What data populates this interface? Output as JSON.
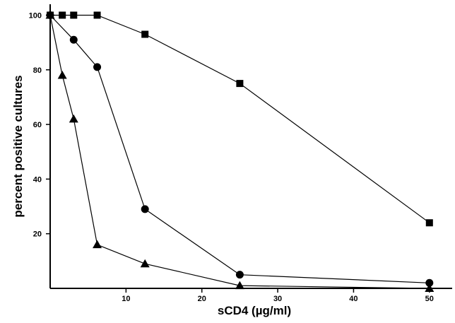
{
  "chart_data": {
    "type": "line",
    "title": "",
    "xlabel": "sCD4 (µg/ml)",
    "ylabel": "percent positive cultures",
    "xlim": [
      0,
      53
    ],
    "ylim": [
      0,
      104
    ],
    "x_ticks": [
      10,
      20,
      30,
      40,
      50
    ],
    "y_ticks": [
      20,
      40,
      60,
      80,
      100
    ],
    "grid": false,
    "legend": "none",
    "series": [
      {
        "marker": "square",
        "x": [
          0,
          1.6,
          3.1,
          6.2,
          12.5,
          25,
          50
        ],
        "y": [
          100,
          100,
          100,
          100,
          93,
          75,
          24
        ]
      },
      {
        "marker": "circle",
        "x": [
          0,
          3.1,
          6.2,
          12.5,
          25,
          50
        ],
        "y": [
          100,
          91,
          81,
          29,
          5,
          2
        ]
      },
      {
        "marker": "triangle",
        "x": [
          0,
          1.6,
          3.1,
          6.2,
          12.5,
          25,
          50
        ],
        "y": [
          100,
          78,
          62,
          16,
          9,
          1,
          0
        ]
      }
    ]
  }
}
